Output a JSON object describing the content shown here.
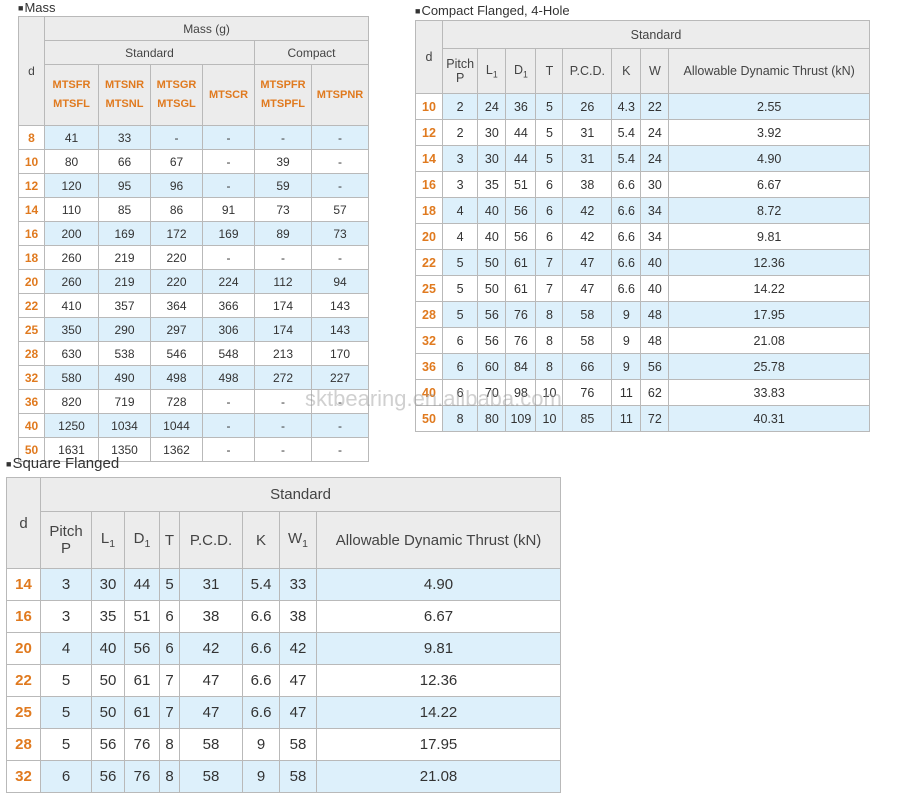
{
  "mass": {
    "title": "Mass",
    "col_d": "d",
    "header_mass": "Mass (g)",
    "header_standard": "Standard",
    "header_compact": "Compact",
    "models": [
      "MTSFR\nMTSFL",
      "MTSNR\nMTSNL",
      "MTSGR\nMTSGL",
      "MTSCR",
      "MTSPFR\nMTSPFL",
      "MTSPNR"
    ],
    "rows": [
      [
        "8",
        "41",
        "33",
        "-",
        "-",
        "-",
        "-"
      ],
      [
        "10",
        "80",
        "66",
        "67",
        "-",
        "39",
        "-"
      ],
      [
        "12",
        "120",
        "95",
        "96",
        "-",
        "59",
        "-"
      ],
      [
        "14",
        "110",
        "85",
        "86",
        "91",
        "73",
        "57"
      ],
      [
        "16",
        "200",
        "169",
        "172",
        "169",
        "89",
        "73"
      ],
      [
        "18",
        "260",
        "219",
        "220",
        "-",
        "-",
        "-"
      ],
      [
        "20",
        "260",
        "219",
        "220",
        "224",
        "112",
        "94"
      ],
      [
        "22",
        "410",
        "357",
        "364",
        "366",
        "174",
        "143"
      ],
      [
        "25",
        "350",
        "290",
        "297",
        "306",
        "174",
        "143"
      ],
      [
        "28",
        "630",
        "538",
        "546",
        "548",
        "213",
        "170"
      ],
      [
        "32",
        "580",
        "490",
        "498",
        "498",
        "272",
        "227"
      ],
      [
        "36",
        "820",
        "719",
        "728",
        "-",
        "-",
        "-"
      ],
      [
        "40",
        "1250",
        "1034",
        "1044",
        "-",
        "-",
        "-"
      ],
      [
        "50",
        "1631",
        "1350",
        "1362",
        "-",
        "-",
        "-"
      ]
    ]
  },
  "compact": {
    "title": "Compact Flanged, 4-Hole",
    "col_d": "d",
    "header_standard": "Standard",
    "cols": [
      "Pitch\nP",
      "L1",
      "D1",
      "T",
      "P.C.D.",
      "K",
      "W",
      "Allowable Dynamic Thrust (kN)"
    ],
    "rows": [
      [
        "10",
        "2",
        "24",
        "36",
        "5",
        "26",
        "4.3",
        "22",
        "2.55"
      ],
      [
        "12",
        "2",
        "30",
        "44",
        "5",
        "31",
        "5.4",
        "24",
        "3.92"
      ],
      [
        "14",
        "3",
        "30",
        "44",
        "5",
        "31",
        "5.4",
        "24",
        "4.90"
      ],
      [
        "16",
        "3",
        "35",
        "51",
        "6",
        "38",
        "6.6",
        "30",
        "6.67"
      ],
      [
        "18",
        "4",
        "40",
        "56",
        "6",
        "42",
        "6.6",
        "34",
        "8.72"
      ],
      [
        "20",
        "4",
        "40",
        "56",
        "6",
        "42",
        "6.6",
        "34",
        "9.81"
      ],
      [
        "22",
        "5",
        "50",
        "61",
        "7",
        "47",
        "6.6",
        "40",
        "12.36"
      ],
      [
        "25",
        "5",
        "50",
        "61",
        "7",
        "47",
        "6.6",
        "40",
        "14.22"
      ],
      [
        "28",
        "5",
        "56",
        "76",
        "8",
        "58",
        "9",
        "48",
        "17.95"
      ],
      [
        "32",
        "6",
        "56",
        "76",
        "8",
        "58",
        "9",
        "48",
        "21.08"
      ],
      [
        "36",
        "6",
        "60",
        "84",
        "8",
        "66",
        "9",
        "56",
        "25.78"
      ],
      [
        "40",
        "6",
        "70",
        "98",
        "10",
        "76",
        "11",
        "62",
        "33.83"
      ],
      [
        "50",
        "8",
        "80",
        "109",
        "10",
        "85",
        "11",
        "72",
        "40.31"
      ]
    ]
  },
  "square": {
    "title": "Square Flanged",
    "col_d": "d",
    "header_standard": "Standard",
    "cols": [
      "Pitch\nP",
      "L1",
      "D1",
      "T",
      "P.C.D.",
      "K",
      "W1",
      "Allowable Dynamic Thrust (kN)"
    ],
    "rows": [
      [
        "14",
        "3",
        "30",
        "44",
        "5",
        "31",
        "5.4",
        "33",
        "4.90"
      ],
      [
        "16",
        "3",
        "35",
        "51",
        "6",
        "38",
        "6.6",
        "38",
        "6.67"
      ],
      [
        "20",
        "4",
        "40",
        "56",
        "6",
        "42",
        "6.6",
        "42",
        "9.81"
      ],
      [
        "22",
        "5",
        "50",
        "61",
        "7",
        "47",
        "6.6",
        "47",
        "12.36"
      ],
      [
        "25",
        "5",
        "50",
        "61",
        "7",
        "47",
        "6.6",
        "47",
        "14.22"
      ],
      [
        "28",
        "5",
        "56",
        "76",
        "8",
        "58",
        "9",
        "58",
        "17.95"
      ],
      [
        "32",
        "6",
        "56",
        "76",
        "8",
        "58",
        "9",
        "58",
        "21.08"
      ]
    ]
  },
  "watermark": "sktbearing.en.alibaba.com",
  "colors": {
    "accent": "#e07a1f",
    "row_shade": "#ddf0fb",
    "header_bg": "#ececec"
  }
}
